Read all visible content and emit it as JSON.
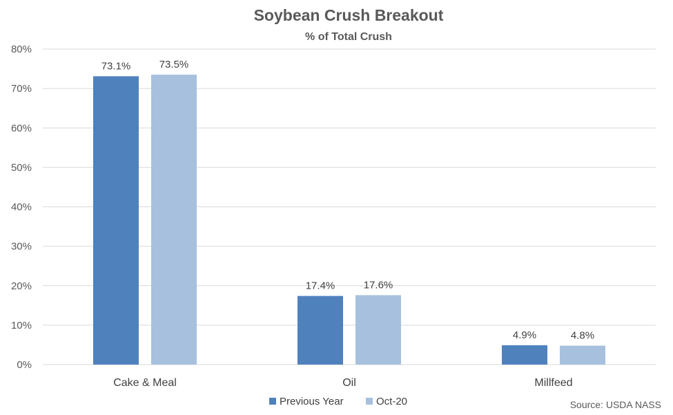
{
  "chart_data": {
    "type": "bar",
    "title": "Soybean Crush Breakout",
    "subtitle": "% of Total Crush",
    "categories": [
      "Cake & Meal",
      "Oil",
      "Millfeed"
    ],
    "series": [
      {
        "name": "Previous Year",
        "values": [
          73.1,
          17.4,
          4.9
        ],
        "color": "#4f81bd"
      },
      {
        "name": "Oct-20",
        "values": [
          73.5,
          17.6,
          4.8
        ],
        "color": "#a7c0de"
      }
    ],
    "data_labels": [
      [
        "73.1%",
        "17.4%",
        "4.9%"
      ],
      [
        "73.5%",
        "17.6%",
        "4.8%"
      ]
    ],
    "ylim": [
      0,
      80
    ],
    "yticks": [
      "0%",
      "10%",
      "20%",
      "30%",
      "40%",
      "50%",
      "60%",
      "70%",
      "80%"
    ],
    "legend": "bottom",
    "grid": true,
    "source": "Source: USDA NASS"
  }
}
